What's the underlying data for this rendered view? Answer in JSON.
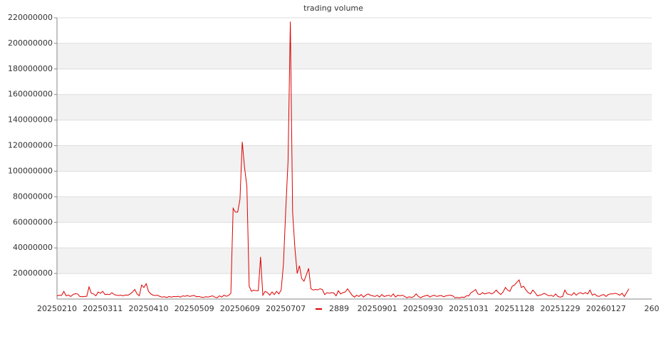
{
  "chart_data": {
    "type": "line",
    "title": "trading volume",
    "categories": [
      "20250210",
      null,
      null,
      null,
      null,
      null,
      null,
      null,
      null,
      null,
      null,
      null,
      null,
      null,
      null,
      null,
      null,
      null,
      null,
      null,
      "20250311",
      null,
      null,
      null,
      null,
      null,
      null,
      null,
      null,
      null,
      null,
      null,
      null,
      null,
      null,
      null,
      null,
      null,
      null,
      null,
      "20250410",
      null,
      null,
      null,
      null,
      null,
      null,
      null,
      null,
      null,
      null,
      null,
      null,
      null,
      null,
      null,
      null,
      null,
      null,
      null,
      "20250509",
      null,
      null,
      null,
      null,
      null,
      null,
      null,
      null,
      null,
      null,
      null,
      null,
      null,
      null,
      null,
      null,
      null,
      null,
      null,
      "20250609",
      null,
      null,
      null,
      null,
      null,
      null,
      null,
      null,
      null,
      null,
      null,
      null,
      null,
      null,
      null,
      null,
      null,
      null,
      null,
      "20250707",
      null,
      null,
      null,
      null,
      null,
      null,
      null,
      null,
      null,
      null,
      null,
      null,
      null,
      null,
      null,
      null,
      null,
      null,
      null,
      null,
      null,
      null,
      null,
      null,
      null,
      null,
      null,
      null,
      null,
      null,
      null,
      null,
      null,
      null,
      null,
      null,
      null,
      null,
      null,
      "20250901",
      null,
      null,
      null,
      null,
      null,
      null,
      null,
      null,
      null,
      null,
      null,
      null,
      null,
      null,
      null,
      null,
      null,
      null,
      null,
      "20250930",
      null,
      null,
      null,
      null,
      null,
      null,
      null,
      null,
      null,
      null,
      null,
      null,
      null,
      null,
      null,
      null,
      null,
      null,
      null,
      "20251031",
      null,
      null,
      null,
      null,
      null,
      null,
      null,
      null,
      null,
      null,
      null,
      null,
      null,
      null,
      null,
      null,
      null,
      null,
      null,
      "20251128",
      null,
      null,
      null,
      null,
      null,
      null,
      null,
      null,
      null,
      null,
      null,
      null,
      null,
      null,
      null,
      null,
      null,
      null,
      null,
      "20251229",
      null,
      null,
      null,
      null,
      null,
      null,
      null,
      null,
      null,
      null,
      null,
      null,
      null,
      null,
      null,
      null,
      null,
      null,
      null,
      "20260127",
      null,
      null,
      null,
      null,
      null,
      null,
      null,
      null,
      null,
      null,
      null,
      null,
      null,
      null,
      null,
      null,
      null,
      null,
      null,
      "260"
    ],
    "series": [
      {
        "name": "2889",
        "color": "#dd0000",
        "values": [
          2500000,
          3000000,
          2800000,
          6000000,
          2500000,
          3200000,
          2000000,
          3500000,
          4200000,
          4000000,
          2000000,
          1800000,
          2000000,
          2200000,
          9500000,
          4500000,
          4000000,
          2500000,
          5500000,
          4500000,
          6000000,
          3500000,
          3800000,
          3500000,
          5000000,
          3500000,
          3000000,
          2800000,
          3000000,
          2500000,
          3200000,
          3000000,
          4000000,
          5500000,
          7500000,
          4000000,
          2500000,
          11000000,
          9000000,
          12000000,
          6000000,
          4000000,
          3000000,
          2800000,
          3000000,
          2000000,
          1500000,
          1800000,
          1200000,
          2000000,
          1500000,
          2000000,
          1800000,
          2200000,
          1500000,
          2500000,
          2200000,
          2800000,
          2000000,
          2500000,
          2800000,
          1800000,
          2000000,
          1500000,
          1200000,
          1800000,
          1500000,
          2000000,
          2500000,
          1500000,
          1000000,
          2500000,
          1500000,
          3000000,
          2200000,
          2800000,
          4500000,
          71000000,
          68000000,
          68000000,
          78000000,
          123000000,
          103000000,
          88000000,
          10000000,
          6000000,
          7000000,
          6500000,
          6500000,
          33000000,
          3000000,
          6000000,
          5000000,
          3000000,
          5500000,
          3500000,
          6000000,
          4000000,
          7000000,
          27000000,
          70000000,
          108000000,
          217000000,
          68000000,
          40000000,
          20000000,
          26000000,
          16000000,
          14000000,
          19000000,
          24000000,
          8000000,
          7000000,
          7500000,
          7200000,
          8000000,
          7500000,
          3500000,
          5000000,
          4500000,
          5000000,
          4800000,
          2500000,
          6500000,
          4000000,
          5000000,
          5500000,
          8000000,
          5500000,
          3000000,
          1500000,
          3000000,
          2000000,
          3500000,
          1500000,
          3000000,
          4000000,
          3000000,
          2500000,
          2000000,
          3000000,
          1500000,
          3500000,
          2000000,
          2500000,
          3000000,
          2000000,
          4000000,
          1500000,
          3000000,
          2500000,
          3000000,
          2000000,
          1000000,
          1800000,
          1200000,
          2000000,
          4000000,
          2000000,
          1000000,
          2000000,
          2500000,
          3000000,
          1500000,
          2500000,
          3000000,
          2000000,
          2500000,
          2800000,
          1800000,
          2500000,
          2800000,
          3000000,
          2500000,
          1000000,
          1200000,
          1000000,
          1500000,
          1200000,
          2500000,
          2500000,
          5000000,
          6000000,
          7500000,
          4000000,
          3500000,
          5000000,
          4000000,
          4500000,
          5000000,
          4000000,
          5000000,
          7000000,
          5000000,
          3500000,
          5500000,
          9000000,
          7000000,
          6000000,
          10000000,
          11000000,
          13000000,
          15000000,
          9000000,
          10000000,
          7000000,
          5000000,
          4000000,
          7000000,
          5000000,
          2500000,
          3000000,
          3500000,
          4500000,
          3500000,
          2500000,
          3000000,
          2000000,
          4000000,
          2000000,
          1500000,
          2000000,
          7000000,
          4000000,
          3500000,
          3000000,
          5000000,
          3000000,
          4500000,
          5000000,
          4000000,
          5000000,
          4000000,
          7000000,
          3000000,
          4000000,
          2500000,
          2000000,
          3000000,
          3500000,
          2000000,
          3500000,
          4000000,
          4000000,
          4500000,
          4000000,
          3000000,
          4500000,
          2000000,
          5000000,
          8000000,
          null,
          null,
          null,
          null,
          null,
          null,
          null,
          null,
          null,
          null
        ]
      }
    ],
    "ylim": [
      0,
      220000000
    ],
    "yticks": [
      20000000,
      40000000,
      60000000,
      80000000,
      100000000,
      120000000,
      140000000,
      160000000,
      180000000,
      200000000,
      220000000
    ],
    "grid": true,
    "legend": "bottom"
  }
}
